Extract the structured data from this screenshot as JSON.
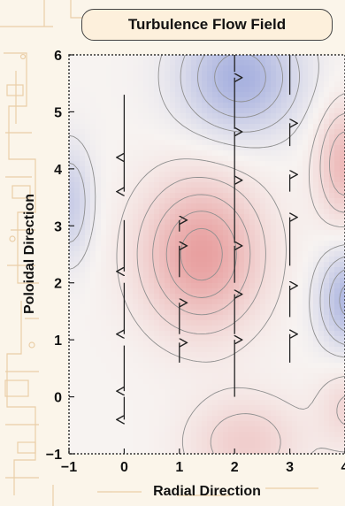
{
  "chart_data": {
    "type": "heatmap",
    "title": "Turbulence Flow Field",
    "xlabel": "Radial Direction",
    "ylabel": "Poloidal Direction",
    "xlim": [
      -1,
      4
    ],
    "ylim": [
      -1,
      6
    ],
    "x_ticks": [
      "-1",
      "0",
      "1",
      "2",
      "3",
      "4"
    ],
    "y_ticks": [
      "-1",
      "0",
      "1",
      "2",
      "3",
      "4",
      "5",
      "6"
    ],
    "colormap": {
      "positive": "#e8a0a0",
      "negative": "#9aa6dc",
      "zero": "#f7f3f1"
    },
    "field_sources": [
      {
        "x": 1.4,
        "y": 2.5,
        "amp": 1.0,
        "sx": 0.75,
        "sy": 0.9
      },
      {
        "x": 4.0,
        "y": 4.1,
        "amp": 0.7,
        "sx": 0.35,
        "sy": 0.7
      },
      {
        "x": 2.2,
        "y": -0.8,
        "amp": 0.45,
        "sx": 0.7,
        "sy": 0.55
      },
      {
        "x": 4.1,
        "y": -0.2,
        "amp": 0.35,
        "sx": 0.4,
        "sy": 0.5
      },
      {
        "x": 2.1,
        "y": 5.6,
        "amp": -0.85,
        "sx": 0.75,
        "sy": 0.7
      },
      {
        "x": -1.0,
        "y": 3.4,
        "amp": -0.5,
        "sx": 0.3,
        "sy": 0.7
      },
      {
        "x": 4.1,
        "y": 1.7,
        "amp": -0.8,
        "sx": 0.4,
        "sy": 0.6
      }
    ],
    "vectors": [
      {
        "x": 0,
        "y": 5.3,
        "dy": -1.1
      },
      {
        "x": 0,
        "y": 4.2,
        "dy": -0.6
      },
      {
        "x": 0,
        "y": 3.1,
        "dy": -0.9
      },
      {
        "x": 0,
        "y": 2.0,
        "dy": -0.9
      },
      {
        "x": 0,
        "y": 0.9,
        "dy": -0.8
      },
      {
        "x": 0,
        "y": 0.0,
        "dy": -0.4
      },
      {
        "x": 1,
        "y": 0.6,
        "dy": 0.35
      },
      {
        "x": 1,
        "y": 1.1,
        "dy": 0.55
      },
      {
        "x": 1,
        "y": 2.1,
        "dy": 0.55
      },
      {
        "x": 1,
        "y": 2.9,
        "dy": 0.2
      },
      {
        "x": 2,
        "y": 0.0,
        "dy": 1.0
      },
      {
        "x": 2,
        "y": 1.1,
        "dy": 0.7
      },
      {
        "x": 2,
        "y": 2.0,
        "dy": 0.65
      },
      {
        "x": 2,
        "y": 2.7,
        "dy": 1.1
      },
      {
        "x": 2,
        "y": 3.8,
        "dy": 0.85
      },
      {
        "x": 2,
        "y": 4.7,
        "dy": 0.9
      },
      {
        "x": 2,
        "y": 5.7,
        "dy": 1.1
      },
      {
        "x": 3,
        "y": 0.6,
        "dy": 0.5
      },
      {
        "x": 3,
        "y": 1.4,
        "dy": 0.55
      },
      {
        "x": 3,
        "y": 2.3,
        "dy": 0.85
      },
      {
        "x": 3,
        "y": 3.6,
        "dy": 0.3
      },
      {
        "x": 3,
        "y": 4.4,
        "dy": 0.4
      },
      {
        "x": 3,
        "y": 5.3,
        "dy": 0.8
      }
    ],
    "grid": false
  }
}
